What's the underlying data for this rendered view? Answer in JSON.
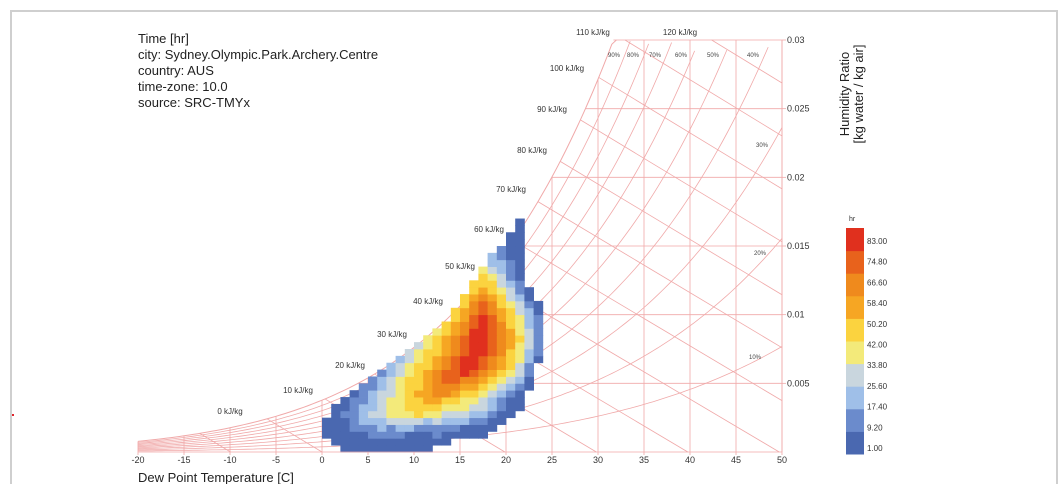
{
  "info": {
    "title": "Time [hr]",
    "city": "city: Sydney.Olympic.Park.Archery.Centre",
    "country": "country: AUS",
    "timezone": "time-zone: 10.0",
    "source": "source: SRC-TMYx"
  },
  "colors": {
    "grid": "#f0a9a9",
    "ramp": [
      "#4a68b0",
      "#6b8bcc",
      "#9fbfe8",
      "#c9d6de",
      "#f3ea7a",
      "#fbd33f",
      "#f6a623",
      "#ef8a1d",
      "#e8621c",
      "#e0301e"
    ]
  },
  "chart_data": {
    "type": "heatmap",
    "xlabel": "Dew Point Temperature [C]",
    "ylabel": "Humidity Ratio\n[kg water / kg air]",
    "x_ticks": [
      -20,
      -15,
      -10,
      -5,
      0,
      5,
      10,
      15,
      20,
      25,
      30,
      35,
      40,
      45,
      50
    ],
    "y_ticks": [
      0.005,
      0.01,
      0.015,
      0.02,
      0.025,
      0.03
    ],
    "xlim": [
      -20,
      50
    ],
    "ylim": [
      0,
      0.03
    ],
    "enthalpy_labels": [
      "0 kJ/kg",
      "10 kJ/kg",
      "20 kJ/kg",
      "30 kJ/kg",
      "40 kJ/kg",
      "50 kJ/kg",
      "60 kJ/kg",
      "70 kJ/kg",
      "80 kJ/kg",
      "90 kJ/kg",
      "100 kJ/kg",
      "110 kJ/kg",
      "120 kJ/kg"
    ],
    "rh_labels": [
      "90%",
      "80%",
      "70%",
      "60%",
      "50%",
      "40%",
      "30%",
      "20%",
      "10%"
    ],
    "legend": {
      "title": "hr",
      "labels": [
        "83.00",
        "74.80",
        "66.60",
        "58.40",
        "50.20",
        "42.00",
        "33.80",
        "25.60",
        "17.40",
        "9.20",
        "1.00"
      ],
      "min": 1,
      "max": 83
    },
    "cell_size": {
      "dx": 1,
      "dw": 0.001
    },
    "rows": [
      {
        "w": 0.0005,
        "x0": 2,
        "v": [
          2,
          3,
          3,
          2,
          3,
          3,
          4,
          3,
          2,
          3
        ]
      },
      {
        "w": 0.001,
        "x0": 1,
        "v": [
          3,
          4,
          5,
          7,
          6,
          5,
          8,
          6,
          5,
          6,
          4,
          3,
          2
        ]
      },
      {
        "w": 0.0015,
        "x0": 0,
        "v": [
          4,
          5,
          6,
          8,
          9,
          10,
          12,
          10,
          11,
          9,
          8,
          9,
          10,
          7,
          5,
          4,
          3,
          2
        ]
      },
      {
        "w": 0.002,
        "x0": 0,
        "v": [
          3,
          6,
          9,
          12,
          14,
          16,
          18,
          16,
          20,
          18,
          15,
          14,
          16,
          12,
          10,
          9,
          7,
          5,
          3
        ]
      },
      {
        "w": 0.0025,
        "x0": 0,
        "v": [
          2,
          5,
          8,
          14,
          18,
          22,
          24,
          28,
          26,
          30,
          28,
          24,
          26,
          22,
          20,
          18,
          14,
          10,
          6,
          3
        ]
      },
      {
        "w": 0.003,
        "x0": 1,
        "v": [
          6,
          10,
          14,
          20,
          26,
          30,
          34,
          38,
          40,
          42,
          38,
          34,
          30,
          28,
          26,
          22,
          18,
          12,
          6,
          3
        ]
      },
      {
        "w": 0.0035,
        "x0": 1,
        "v": [
          4,
          8,
          12,
          18,
          24,
          30,
          36,
          40,
          46,
          44,
          48,
          42,
          40,
          36,
          34,
          30,
          26,
          20,
          12,
          6,
          3
        ]
      },
      {
        "w": 0.004,
        "x0": 2,
        "v": [
          6,
          10,
          16,
          22,
          28,
          34,
          40,
          46,
          50,
          56,
          52,
          48,
          44,
          40,
          36,
          30,
          24,
          16,
          8,
          3
        ]
      },
      {
        "w": 0.0045,
        "x0": 3,
        "v": [
          8,
          12,
          18,
          26,
          32,
          40,
          46,
          52,
          58,
          62,
          60,
          54,
          50,
          44,
          38,
          30,
          22,
          12,
          5
        ]
      },
      {
        "w": 0.005,
        "x0": 4,
        "v": [
          10,
          16,
          22,
          30,
          36,
          44,
          50,
          56,
          62,
          66,
          64,
          58,
          52,
          46,
          38,
          30,
          20,
          10,
          4
        ]
      },
      {
        "w": 0.0055,
        "x0": 5,
        "v": [
          12,
          18,
          26,
          34,
          42,
          48,
          54,
          62,
          68,
          72,
          66,
          60,
          54,
          48,
          40,
          30,
          18,
          8
        ]
      },
      {
        "w": 0.006,
        "x0": 6,
        "v": [
          16,
          22,
          30,
          38,
          46,
          52,
          60,
          68,
          74,
          78,
          72,
          64,
          58,
          50,
          40,
          28,
          14
        ]
      },
      {
        "w": 0.0065,
        "x0": 7,
        "v": [
          18,
          26,
          34,
          42,
          50,
          58,
          66,
          72,
          80,
          76,
          70,
          62,
          54,
          44,
          30,
          16
        ]
      },
      {
        "w": 0.007,
        "x0": 8,
        "v": [
          22,
          30,
          38,
          46,
          54,
          62,
          70,
          78,
          82,
          74,
          66,
          58,
          48,
          34,
          18,
          8
        ]
      },
      {
        "w": 0.0075,
        "x0": 9,
        "v": [
          26,
          34,
          42,
          50,
          58,
          66,
          74,
          80,
          76,
          68,
          60,
          50,
          38,
          22,
          10
        ]
      },
      {
        "w": 0.008,
        "x0": 10,
        "v": [
          30,
          38,
          46,
          56,
          64,
          72,
          80,
          78,
          70,
          62,
          52,
          40,
          26,
          12
        ]
      },
      {
        "w": 0.0085,
        "x0": 11,
        "v": [
          36,
          44,
          52,
          60,
          70,
          78,
          82,
          72,
          64,
          54,
          42,
          28,
          14
        ]
      },
      {
        "w": 0.009,
        "x0": 12,
        "v": [
          40,
          48,
          56,
          66,
          76,
          80,
          70,
          62,
          52,
          40,
          26,
          12
        ]
      },
      {
        "w": 0.0095,
        "x0": 13,
        "v": [
          44,
          52,
          62,
          72,
          78,
          70,
          60,
          50,
          38,
          24,
          12
        ]
      },
      {
        "w": 0.01,
        "x0": 14,
        "v": [
          48,
          58,
          68,
          76,
          68,
          58,
          46,
          34,
          20,
          10
        ]
      },
      {
        "w": 0.0105,
        "x0": 14,
        "v": [
          44,
          54,
          64,
          72,
          66,
          54,
          42,
          30,
          18,
          8
        ]
      },
      {
        "w": 0.011,
        "x0": 15,
        "v": [
          50,
          60,
          68,
          62,
          50,
          38,
          26,
          14,
          6
        ]
      },
      {
        "w": 0.0115,
        "x0": 15,
        "v": [
          46,
          56,
          62,
          54,
          42,
          30,
          18,
          8
        ]
      },
      {
        "w": 0.012,
        "x0": 16,
        "v": [
          48,
          56,
          50,
          38,
          26,
          14,
          6
        ]
      },
      {
        "w": 0.0125,
        "x0": 16,
        "v": [
          42,
          50,
          44,
          32,
          20,
          10
        ]
      },
      {
        "w": 0.013,
        "x0": 17,
        "v": [
          44,
          38,
          28,
          16,
          8
        ]
      },
      {
        "w": 0.0135,
        "x0": 17,
        "v": [
          36,
          30,
          22,
          12,
          5
        ]
      },
      {
        "w": 0.014,
        "x0": 18,
        "v": [
          24,
          18,
          10,
          4
        ]
      },
      {
        "w": 0.0145,
        "x0": 18,
        "v": [
          18,
          12,
          6,
          3
        ]
      },
      {
        "w": 0.015,
        "x0": 19,
        "v": [
          10,
          6,
          3
        ]
      },
      {
        "w": 0.0155,
        "x0": 20,
        "v": [
          5,
          3
        ]
      },
      {
        "w": 0.016,
        "x0": 20,
        "v": [
          3,
          2
        ]
      },
      {
        "w": 0.0165,
        "x0": 21,
        "v": [
          2
        ]
      },
      {
        "w": 0.017,
        "x0": 21,
        "v": [
          1
        ]
      }
    ]
  }
}
